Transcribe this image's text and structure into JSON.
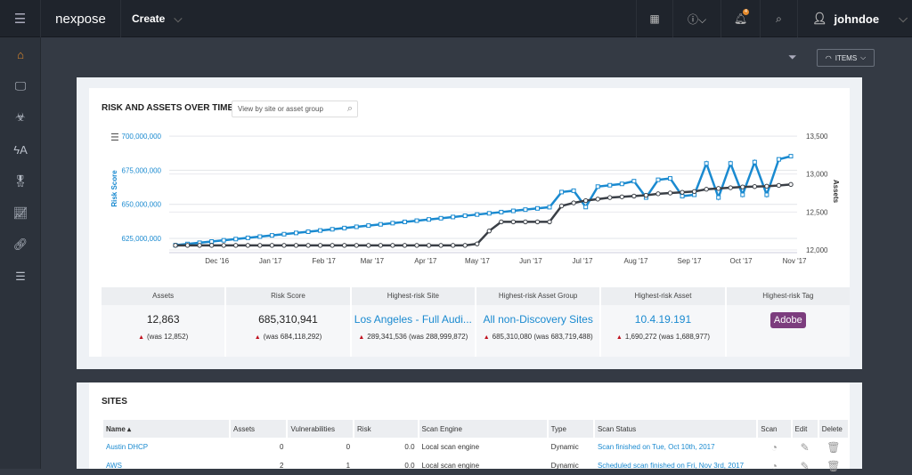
{
  "topbar": {
    "logo": "nexpose",
    "create": "Create",
    "user": "johndoe",
    "notification_count": "4"
  },
  "sidebar": {
    "items": [
      "home",
      "assets",
      "vulnerabilities",
      "policies",
      "certificates",
      "reports",
      "integrations",
      "list"
    ]
  },
  "subbar": {
    "items_label": "ITEMS"
  },
  "risk": {
    "title": "RISK AND ASSETS OVER TIME",
    "search_placeholder": "View by site or asset group"
  },
  "chart_data": {
    "type": "line",
    "x": [
      "2016-11-10",
      "2016-11-17",
      "2016-11-24",
      "2016-12-01",
      "2016-12-08",
      "2016-12-15",
      "2016-12-22",
      "2016-12-29",
      "2017-01-05",
      "2017-01-12",
      "2017-01-19",
      "2017-01-26",
      "2017-02-02",
      "2017-02-09",
      "2017-02-16",
      "2017-02-23",
      "2017-03-02",
      "2017-03-09",
      "2017-03-16",
      "2017-03-23",
      "2017-03-30",
      "2017-04-06",
      "2017-04-13",
      "2017-04-20",
      "2017-04-27",
      "2017-05-04",
      "2017-05-11",
      "2017-05-18",
      "2017-05-25",
      "2017-06-01",
      "2017-06-08",
      "2017-06-15",
      "2017-06-22",
      "2017-06-29",
      "2017-07-06",
      "2017-07-13",
      "2017-07-20",
      "2017-07-27",
      "2017-08-03",
      "2017-08-10",
      "2017-08-17",
      "2017-08-24",
      "2017-08-31",
      "2017-09-07",
      "2017-09-14",
      "2017-09-21",
      "2017-09-28",
      "2017-10-05",
      "2017-10-12",
      "2017-10-19",
      "2017-10-26",
      "2017-11-02"
    ],
    "x_tick_labels": [
      "Dec '16",
      "Jan '17",
      "Feb '17",
      "Mar '17",
      "Apr '17",
      "May '17",
      "Jun '17",
      "Jul '17",
      "Aug '17",
      "Sep '17",
      "Oct '17",
      "Nov '17"
    ],
    "x_tick_dates": [
      "2016-12-01",
      "2017-01-01",
      "2017-02-01",
      "2017-03-01",
      "2017-04-01",
      "2017-05-01",
      "2017-06-01",
      "2017-07-01",
      "2017-08-01",
      "2017-09-01",
      "2017-10-01",
      "2017-11-01"
    ],
    "ylabel": "Risk Score",
    "ylim": [
      615000000,
      700000000
    ],
    "y_ticks": [
      {
        "v": 625000000,
        "label": "625,000,000"
      },
      {
        "v": 650000000,
        "label": "650,000,000"
      },
      {
        "v": 675000000,
        "label": "675,000,000"
      },
      {
        "v": 700000000,
        "label": "700,000,000"
      }
    ],
    "y2label": "Assets",
    "y2lim": [
      12000,
      13500
    ],
    "y2_ticks": [
      {
        "v": 12000,
        "label": "12,000"
      },
      {
        "v": 12500,
        "label": "12,500"
      },
      {
        "v": 13000,
        "label": "13,000"
      },
      {
        "v": 13500,
        "label": "13,500"
      }
    ],
    "grid": true,
    "series": [
      {
        "name": "Risk Score",
        "axis": "left",
        "color": "#1a8ad0",
        "marker": "square",
        "values": [
          620000000,
          620900000,
          621800000,
          622700000,
          623600000,
          624500000,
          625400000,
          626300000,
          627200000,
          628100000,
          629000000,
          629900000,
          630800000,
          631700000,
          632600000,
          633500000,
          634400000,
          635300000,
          636200000,
          637100000,
          638000000,
          638900000,
          639800000,
          640700000,
          641600000,
          642500000,
          643400000,
          644300000,
          645200000,
          646100000,
          647000000,
          647900000,
          659000000,
          660000000,
          648000000,
          663000000,
          664000000,
          665000000,
          667000000,
          655000000,
          668000000,
          669000000,
          656000000,
          657000000,
          680000000,
          655000000,
          680000000,
          657000000,
          681000000,
          657000000,
          683000000,
          685310941
        ]
      },
      {
        "name": "Assets",
        "axis": "right",
        "color": "#3a3f46",
        "marker": "circle",
        "values": [
          12060,
          12060,
          12060,
          12060,
          12060,
          12060,
          12060,
          12060,
          12060,
          12060,
          12060,
          12060,
          12060,
          12060,
          12060,
          12060,
          12060,
          12060,
          12060,
          12060,
          12060,
          12060,
          12060,
          12060,
          12060,
          12080,
          12250,
          12370,
          12370,
          12370,
          12370,
          12370,
          12580,
          12620,
          12650,
          12670,
          12690,
          12700,
          12710,
          12720,
          12740,
          12750,
          12760,
          12770,
          12800,
          12810,
          12820,
          12830,
          12835,
          12840,
          12850,
          12863
        ]
      }
    ]
  },
  "summary": [
    {
      "header": "Assets",
      "value": "12,863",
      "delta": "(was 12,852)",
      "kind": "plain"
    },
    {
      "header": "Risk Score",
      "value": "685,310,941",
      "delta": "(was 684,118,292)",
      "kind": "plain"
    },
    {
      "header": "Highest-risk Site",
      "value": "Los Angeles - Full Audi...",
      "delta": "289,341,536 (was 288,999,872)",
      "kind": "link"
    },
    {
      "header": "Highest-risk Asset Group",
      "value": "All non-Discovery Sites",
      "delta": "685,310,080 (was 683,719,488)",
      "kind": "link"
    },
    {
      "header": "Highest-risk Asset",
      "value": "10.4.19.191",
      "delta": "1,690,272 (was 1,688,977)",
      "kind": "link"
    },
    {
      "header": "Highest-risk Tag",
      "value": "Adobe",
      "delta": "",
      "kind": "tag"
    }
  ],
  "sites": {
    "title": "SITES",
    "columns": [
      "Name ▴",
      "Assets",
      "Vulnerabilities",
      "Risk",
      "Scan Engine",
      "Type",
      "Scan Status",
      "Scan",
      "Edit",
      "Delete"
    ],
    "rows": [
      {
        "name": "Austin DHCP",
        "assets": "0",
        "vulns": "0",
        "risk": "0.0",
        "engine": "Local scan engine",
        "type": "Dynamic",
        "status": "Scan finished on Tue, Oct 10th, 2017"
      },
      {
        "name": "AWS",
        "assets": "2",
        "vulns": "1",
        "risk": "0.0",
        "engine": "Local scan engine",
        "type": "Dynamic",
        "status": "Scheduled scan finished on Fri, Nov 3rd, 2017"
      }
    ]
  }
}
